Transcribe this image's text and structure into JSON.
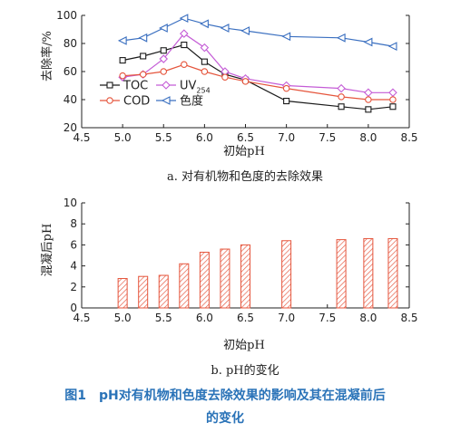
{
  "chart_data": [
    {
      "type": "line",
      "ylabel": "去除率/%",
      "xlabel": "初始pH",
      "xlim": [
        4.5,
        8.5
      ],
      "ylim": [
        20,
        100
      ],
      "x_ticks": [
        "4.5",
        "5.0",
        "5.5",
        "6.0",
        "6.5",
        "7.0",
        "7.5",
        "8.0",
        "8.5"
      ],
      "y_ticks": [
        "20",
        "40",
        "60",
        "80",
        "100"
      ],
      "grid": false,
      "legend_position": "bottom-left",
      "series": [
        {
          "name": "TOC",
          "color": "#1a1a1a",
          "marker": "square",
          "x": [
            5.0,
            5.25,
            5.5,
            5.75,
            6.0,
            6.25,
            6.5,
            7.0,
            7.67,
            8.0,
            8.3
          ],
          "y": [
            68,
            71,
            75,
            79,
            67,
            58,
            54,
            39,
            35,
            33,
            35
          ]
        },
        {
          "name": "UV",
          "name_sub": "254",
          "color": "#c45cd6",
          "marker": "diamond",
          "x": [
            5.0,
            5.25,
            5.5,
            5.75,
            6.0,
            6.25,
            6.5,
            7.0,
            7.67,
            8.0,
            8.3
          ],
          "y": [
            56,
            58,
            69,
            87,
            77,
            60,
            55,
            50,
            48,
            45,
            45
          ]
        },
        {
          "name": "COD",
          "color": "#e5553c",
          "marker": "circle",
          "x": [
            5.0,
            5.25,
            5.5,
            5.75,
            6.0,
            6.25,
            6.5,
            7.0,
            7.67,
            8.0,
            8.3
          ],
          "y": [
            57,
            58,
            60,
            65,
            60,
            56,
            53,
            48,
            42,
            40,
            40
          ]
        },
        {
          "name": "色度",
          "color": "#3a6fc0",
          "marker": "triangle-left",
          "x": [
            5.0,
            5.25,
            5.5,
            5.75,
            6.0,
            6.25,
            6.5,
            7.0,
            7.67,
            8.0,
            8.3
          ],
          "y": [
            82,
            84,
            91,
            98,
            94,
            91,
            89,
            85,
            84,
            81,
            78
          ]
        }
      ],
      "caption": "a. 对有机物和色度的去除效果"
    },
    {
      "type": "bar",
      "ylabel": "混凝后pH",
      "xlabel": "初始pH",
      "xlim": [
        4.5,
        8.5
      ],
      "ylim": [
        0,
        10
      ],
      "x_ticks": [
        "4.5",
        "5.0",
        "5.5",
        "6.0",
        "6.5",
        "7.0",
        "7.5",
        "8.0",
        "8.5"
      ],
      "y_ticks": [
        "0",
        "2",
        "4",
        "6",
        "8",
        "10"
      ],
      "grid": false,
      "bar_color": "#e5553c",
      "bar_pattern": "hatched",
      "x": [
        5.0,
        5.25,
        5.5,
        5.75,
        6.0,
        6.25,
        6.5,
        7.0,
        7.67,
        8.0,
        8.3
      ],
      "values": [
        2.8,
        3.0,
        3.1,
        4.2,
        5.3,
        5.6,
        6.0,
        6.4,
        6.5,
        6.6,
        6.6
      ],
      "caption": "b. pH的变化"
    }
  ],
  "figure_title_line1": "图1　pH对有机物和色度去除效果的影响及其在混凝前后",
  "figure_title_line2": "的变化"
}
